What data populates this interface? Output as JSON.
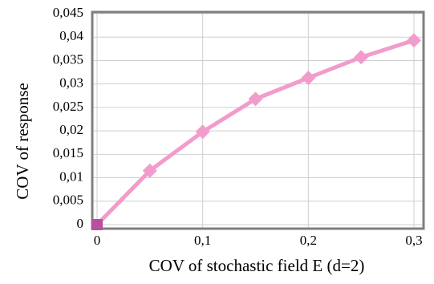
{
  "chart_data": {
    "type": "line",
    "x_label": "COV of stochastic field E (d=2)",
    "y_label": "COV of response",
    "x": [
      0,
      0.05,
      0.1,
      0.15,
      0.2,
      0.25,
      0.3
    ],
    "series": [
      {
        "color": "#f29ccb",
        "marker": "diamond",
        "values": [
          0,
          0.0115,
          0.0198,
          0.0268,
          0.0313,
          0.0357,
          0.0393
        ]
      }
    ],
    "first_point_marker": {
      "shape": "square",
      "color": "#b94fa0"
    },
    "xlim": [
      0,
      0.3
    ],
    "xticks": [
      0,
      {
        "value": 0.1,
        "label": "0,1"
      },
      {
        "value": 0.2,
        "label": "0,2"
      },
      {
        "value": 0.3,
        "label": "0,3"
      }
    ],
    "ylim": [
      0,
      0.045
    ],
    "yticks": [
      0,
      {
        "value": 0.005,
        "label": "0,005"
      },
      {
        "value": 0.01,
        "label": "0,01"
      },
      {
        "value": 0.015,
        "label": "0,015"
      },
      {
        "value": 0.02,
        "label": "0,02"
      },
      {
        "value": 0.025,
        "label": "0,025"
      },
      {
        "value": 0.03,
        "label": "0,03"
      },
      {
        "value": 0.035,
        "label": "0,035"
      },
      {
        "value": 0.04,
        "label": "0,04"
      },
      {
        "value": 0.045,
        "label": "0,045"
      }
    ],
    "grid": true
  }
}
